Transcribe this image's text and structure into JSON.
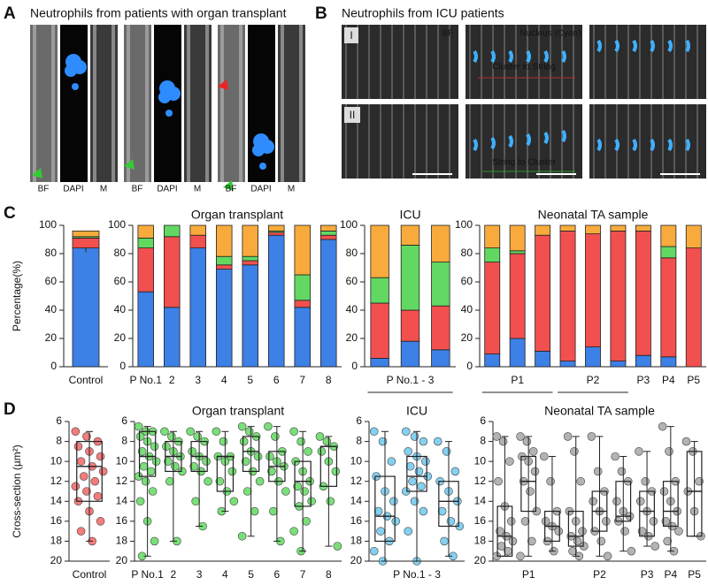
{
  "panel_a": {
    "letter": "A",
    "title": "Neutrophils from patients with organ transplant",
    "labels": [
      "BF",
      "DAPI",
      "M",
      "BF",
      "DAPI",
      "M",
      "BF",
      "DAPI",
      "M"
    ]
  },
  "panel_b": {
    "letter": "B",
    "title": "Neutrophils from ICU patients",
    "row_labels": [
      "I",
      "II"
    ],
    "bf_label": "BF",
    "nucleus_label": "Nucleus (Cyan)",
    "annotations": [
      "Cluster to String",
      "String to Cluster"
    ]
  },
  "chart_data": [
    {
      "type": "bar",
      "panel_label": "C",
      "ylabel": "Percentage(%)",
      "categories": [
        "Control"
      ],
      "ylim": [
        0,
        100
      ],
      "yticks": [
        0,
        20,
        40,
        60,
        80,
        100
      ],
      "series": [
        {
          "color": "#3d80e6",
          "values": [
            84
          ],
          "errors": [
            3
          ]
        },
        {
          "color": "#f24f4f",
          "values": [
            7
          ]
        },
        {
          "color": "#62d862",
          "values": [
            1
          ]
        },
        {
          "color": "#f8ab3c",
          "values": [
            4
          ]
        }
      ]
    },
    {
      "type": "bar",
      "title": "Organ transplant",
      "categories": [
        "P No.1",
        "2",
        "3",
        "4",
        "5",
        "6",
        "7",
        "8"
      ],
      "ylim": [
        0,
        100
      ],
      "yticks": [
        0,
        20,
        40,
        60,
        80,
        100
      ],
      "series": [
        {
          "color": "#3d80e6",
          "values": [
            53,
            42,
            84,
            69,
            72,
            93,
            42,
            90
          ]
        },
        {
          "color": "#f24f4f",
          "values": [
            31,
            50,
            9,
            3,
            3,
            2,
            5,
            3
          ]
        },
        {
          "color": "#62d862",
          "values": [
            7,
            8,
            0,
            6,
            3,
            1,
            18,
            3
          ]
        },
        {
          "color": "#f8ab3c",
          "values": [
            9,
            0,
            7,
            22,
            22,
            4,
            35,
            4
          ]
        }
      ]
    },
    {
      "type": "bar",
      "title": "ICU",
      "categories": [
        null,
        "P No.1 - 3",
        null
      ],
      "ylim": [
        0,
        100
      ],
      "yticks": [
        0,
        20,
        40,
        60,
        80,
        100
      ],
      "series": [
        {
          "color": "#3d80e6",
          "values": [
            6,
            18,
            12
          ]
        },
        {
          "color": "#f24f4f",
          "values": [
            39,
            22,
            31
          ]
        },
        {
          "color": "#62d862",
          "values": [
            18,
            46,
            31
          ]
        },
        {
          "color": "#f8ab3c",
          "values": [
            37,
            14,
            26
          ]
        }
      ]
    },
    {
      "type": "bar",
      "title": "Neonatal TA sample",
      "categories": [
        null,
        "P1",
        null,
        null,
        "P2",
        null,
        "P3",
        "P4",
        "P5"
      ],
      "ylim": [
        0,
        100
      ],
      "yticks": [
        0,
        20,
        40,
        60,
        80,
        100
      ],
      "series": [
        {
          "color": "#3d80e6",
          "values": [
            9,
            20,
            11,
            4,
            14,
            4,
            8,
            7,
            0
          ]
        },
        {
          "color": "#f24f4f",
          "values": [
            65,
            60,
            82,
            92,
            80,
            92,
            88,
            70,
            84
          ]
        },
        {
          "color": "#62d862",
          "values": [
            10,
            2,
            0,
            0,
            0,
            0,
            0,
            8,
            0
          ]
        },
        {
          "color": "#f8ab3c",
          "values": [
            16,
            18,
            7,
            4,
            6,
            4,
            4,
            15,
            16
          ]
        }
      ]
    },
    {
      "type": "box",
      "panel_label": "D",
      "ylabel": "Cross-section (µm²)",
      "categories": [
        "Control"
      ],
      "ylim": [
        20,
        6
      ],
      "yticks": [
        6,
        8,
        10,
        12,
        14,
        16,
        18,
        20
      ],
      "color": "#f05050",
      "boxes": [
        {
          "min": 7,
          "q1": 8,
          "median": 10.5,
          "q3": 14,
          "max": 18,
          "points": [
            7,
            7.5,
            8,
            8.5,
            9,
            9.5,
            10,
            10.5,
            11,
            11.5,
            12,
            12.5,
            13,
            13.5,
            14,
            15,
            16,
            17,
            18
          ]
        }
      ]
    },
    {
      "type": "box",
      "title": "Organ transplant",
      "categories": [
        "P No.1",
        "2",
        "3",
        "4",
        "5",
        "6",
        "7",
        "8"
      ],
      "ylim": [
        20,
        6
      ],
      "yticks": [
        6,
        8,
        10,
        12,
        14,
        16,
        18,
        20
      ],
      "color": "#4cd44c",
      "boxes": [
        {
          "min": 6.5,
          "q1": 7,
          "median": 9.5,
          "q3": 11.5,
          "max": 19.5,
          "points": [
            6.5,
            7,
            7,
            7.5,
            8,
            8.5,
            9,
            9.5,
            10,
            10.5,
            11,
            11.5,
            12,
            13,
            14,
            16,
            18,
            19.5
          ]
        },
        {
          "min": 7,
          "q1": 8,
          "median": 9.5,
          "q3": 11,
          "max": 18,
          "points": [
            7,
            7.5,
            8,
            8.5,
            9,
            9.5,
            10,
            10.5,
            11,
            12,
            18
          ]
        },
        {
          "min": 7,
          "q1": 8,
          "median": 9.5,
          "q3": 11,
          "max": 16.5,
          "points": [
            7,
            7.5,
            8,
            9,
            9.5,
            10,
            10.5,
            11,
            12,
            14,
            16.5
          ]
        },
        {
          "min": 7,
          "q1": 9.5,
          "median": 9.5,
          "q3": 13,
          "max": 15,
          "points": [
            7,
            8,
            9.5,
            9.5,
            10,
            11,
            12,
            13,
            14,
            15
          ]
        },
        {
          "min": 6.5,
          "q1": 7.5,
          "median": 9,
          "q3": 11,
          "max": 17.5,
          "points": [
            6.5,
            7,
            7.5,
            8,
            9,
            9.5,
            10,
            11,
            12,
            13,
            15,
            17.5
          ]
        },
        {
          "min": 6.5,
          "q1": 9,
          "median": 10.5,
          "q3": 12,
          "max": 18,
          "points": [
            6.5,
            7.5,
            9,
            9.5,
            10,
            10.5,
            11,
            12,
            13,
            15,
            18
          ]
        },
        {
          "min": 7,
          "q1": 10,
          "median": 12,
          "q3": 14.5,
          "max": 19,
          "points": [
            7,
            8,
            9,
            10,
            11,
            12,
            12.5,
            13,
            14,
            14.5,
            16,
            17,
            19
          ]
        },
        {
          "min": 7.5,
          "q1": 8.5,
          "median": 8.5,
          "q3": 12.5,
          "max": 18.5,
          "points": [
            7.5,
            8,
            8.5,
            9,
            10,
            11,
            12.5,
            14,
            18.5
          ]
        }
      ]
    },
    {
      "type": "box",
      "title": "ICU",
      "categories": [
        null,
        "P No.1 - 3",
        null
      ],
      "ylim": [
        20,
        6
      ],
      "yticks": [
        6,
        8,
        10,
        12,
        14,
        16,
        18,
        20
      ],
      "color": "#5bc0eb",
      "boxes": [
        {
          "min": 7,
          "q1": 11.5,
          "median": 15.5,
          "q3": 18,
          "max": 20,
          "points": [
            7,
            8,
            10,
            11.5,
            13,
            14,
            15,
            15.5,
            16,
            17,
            18,
            19,
            20
          ]
        },
        {
          "min": 7,
          "q1": 9.5,
          "median": 11.5,
          "q3": 13,
          "max": 20,
          "points": [
            7,
            7.5,
            8,
            9,
            9.5,
            10,
            10.5,
            11,
            11.5,
            12,
            12.5,
            13,
            14,
            15,
            17,
            20
          ]
        },
        {
          "min": 8,
          "q1": 12,
          "median": 14,
          "q3": 16.5,
          "max": 19.5,
          "points": [
            8,
            9,
            11,
            12,
            13,
            14,
            15,
            16,
            16.5,
            18,
            19.5
          ]
        }
      ]
    },
    {
      "type": "box",
      "title": "Neonatal TA sample",
      "categories": [
        null,
        "P1",
        null,
        null,
        "P2",
        null,
        "P3",
        "P4",
        "P5"
      ],
      "ylim": [
        20,
        6
      ],
      "yticks": [
        6,
        8,
        10,
        12,
        14,
        16,
        18,
        20
      ],
      "color": "#9a9a9a",
      "boxes": [
        {
          "min": 7.5,
          "q1": 14.5,
          "median": 17.5,
          "q3": 19.5,
          "max": 19.5,
          "points": [
            7.5,
            8,
            10,
            12,
            14.5,
            16,
            17,
            17.5,
            18,
            18.5,
            19,
            19.5
          ]
        },
        {
          "min": 7.5,
          "q1": 9.5,
          "median": 12,
          "q3": 15,
          "max": 19.5,
          "points": [
            7.5,
            8,
            9,
            9.5,
            10,
            11,
            12,
            13,
            15,
            16,
            18,
            19.5
          ]
        },
        {
          "min": 9.5,
          "q1": 15,
          "median": 16.5,
          "q3": 18,
          "max": 19,
          "points": [
            9.5,
            12,
            15,
            16,
            16.5,
            17,
            18,
            19
          ]
        },
        {
          "min": 7.5,
          "q1": 15,
          "median": 17.5,
          "q3": 18.5,
          "max": 19.5,
          "points": [
            7.5,
            9,
            12,
            15,
            16,
            17,
            17.5,
            18,
            18.5,
            19,
            19.5
          ]
        },
        {
          "min": 7.5,
          "q1": 13,
          "median": 15,
          "q3": 17,
          "max": 19.5,
          "points": [
            7.5,
            11,
            13,
            14,
            15,
            16,
            17,
            18,
            19.5
          ]
        },
        {
          "min": 9.5,
          "q1": 12,
          "median": 15.5,
          "q3": 16,
          "max": 19,
          "points": [
            9.5,
            11,
            12,
            14,
            15,
            15.5,
            16,
            17,
            19
          ]
        },
        {
          "min": 9,
          "q1": 13,
          "median": 15,
          "q3": 17.5,
          "max": 18.5,
          "points": [
            9,
            12,
            13,
            14,
            15,
            16,
            17,
            17.5,
            18.5
          ]
        },
        {
          "min": 6.5,
          "q1": 12,
          "median": 15,
          "q3": 16.5,
          "max": 19,
          "points": [
            6.5,
            9,
            12,
            13,
            14,
            15,
            16,
            16.5,
            17,
            18,
            19
          ]
        },
        {
          "min": 8,
          "q1": 9,
          "median": 13,
          "q3": 17.5,
          "max": 17.5,
          "points": [
            8,
            9,
            12,
            13,
            15,
            17.5
          ]
        }
      ]
    }
  ]
}
